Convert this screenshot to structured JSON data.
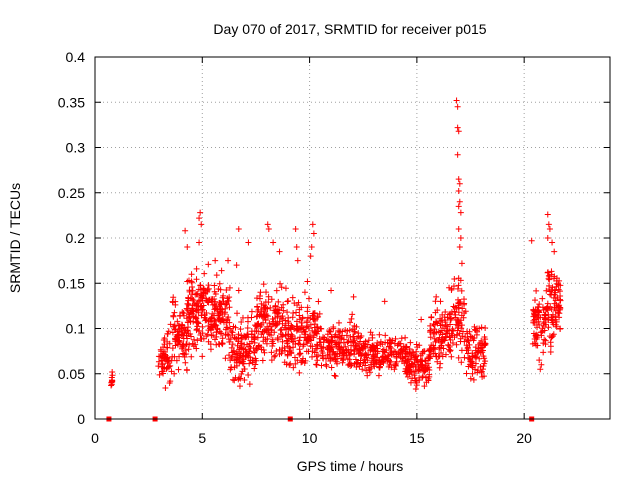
{
  "chart_data": {
    "type": "scatter",
    "title": "Day 070 of 2017, SRMTID for receiver p015",
    "xlabel": "GPS time / hours",
    "ylabel": "SRMTID / TECUs",
    "xlim": [
      0,
      24
    ],
    "ylim": [
      0,
      0.4
    ],
    "x_ticks": [
      0,
      5,
      10,
      15,
      20
    ],
    "x_tick_labels": [
      "0",
      "5",
      "10",
      "15",
      "20"
    ],
    "y_ticks": [
      0,
      0.05,
      0.1,
      0.15,
      0.2,
      0.25,
      0.3,
      0.35,
      0.4
    ],
    "y_tick_labels": [
      "0",
      "0.05",
      "0.1",
      "0.15",
      "0.2",
      "0.25",
      "0.3",
      "0.35",
      "0.4"
    ],
    "grid": true,
    "marker_color": "#ff0000",
    "series": [
      {
        "name": "SRMTID",
        "marker": "plus",
        "clusters": [
          {
            "x_start": 0.75,
            "x_end": 0.85,
            "y_min": 0.035,
            "y_max": 0.05,
            "count": 8
          },
          {
            "x_start": 2.95,
            "x_end": 3.6,
            "y_min": 0.03,
            "y_max": 0.11,
            "count": 60
          },
          {
            "x_start": 3.6,
            "x_end": 4.3,
            "y_min": 0.04,
            "y_max": 0.15,
            "count": 90
          },
          {
            "x_start": 4.3,
            "x_end": 5.3,
            "y_min": 0.06,
            "y_max": 0.18,
            "count": 140
          },
          {
            "x_start": 5.3,
            "x_end": 6.3,
            "y_min": 0.05,
            "y_max": 0.17,
            "count": 120
          },
          {
            "x_start": 6.3,
            "x_end": 7.5,
            "y_min": 0.03,
            "y_max": 0.13,
            "count": 130
          },
          {
            "x_start": 7.5,
            "x_end": 8.8,
            "y_min": 0.05,
            "y_max": 0.16,
            "count": 140
          },
          {
            "x_start": 8.8,
            "x_end": 10.5,
            "y_min": 0.04,
            "y_max": 0.15,
            "count": 170
          },
          {
            "x_start": 10.5,
            "x_end": 12.5,
            "y_min": 0.04,
            "y_max": 0.12,
            "count": 190
          },
          {
            "x_start": 12.5,
            "x_end": 14.5,
            "y_min": 0.04,
            "y_max": 0.1,
            "count": 170
          },
          {
            "x_start": 14.5,
            "x_end": 15.6,
            "y_min": 0.03,
            "y_max": 0.09,
            "count": 120
          },
          {
            "x_start": 15.6,
            "x_end": 16.6,
            "y_min": 0.04,
            "y_max": 0.14,
            "count": 100
          },
          {
            "x_start": 16.6,
            "x_end": 17.3,
            "y_min": 0.05,
            "y_max": 0.17,
            "count": 70
          },
          {
            "x_start": 17.3,
            "x_end": 18.2,
            "y_min": 0.03,
            "y_max": 0.12,
            "count": 90
          },
          {
            "x_start": 20.4,
            "x_end": 21.0,
            "y_min": 0.05,
            "y_max": 0.16,
            "count": 70
          },
          {
            "x_start": 21.0,
            "x_end": 21.7,
            "y_min": 0.07,
            "y_max": 0.19,
            "count": 90
          }
        ],
        "points": [
          [
            0.8,
            0.052
          ],
          [
            0.8,
            0.041
          ],
          [
            0.75,
            0.037
          ],
          [
            4.2,
            0.208
          ],
          [
            4.3,
            0.19
          ],
          [
            4.9,
            0.228
          ],
          [
            4.85,
            0.222
          ],
          [
            4.95,
            0.215
          ],
          [
            4.85,
            0.195
          ],
          [
            5.6,
            0.175
          ],
          [
            5.9,
            0.164
          ],
          [
            6.2,
            0.175
          ],
          [
            6.7,
            0.21
          ],
          [
            6.6,
            0.17
          ],
          [
            6.7,
            0.142
          ],
          [
            7.15,
            0.195
          ],
          [
            8.05,
            0.215
          ],
          [
            8.1,
            0.21
          ],
          [
            8.3,
            0.195
          ],
          [
            8.6,
            0.185
          ],
          [
            9.35,
            0.21
          ],
          [
            9.4,
            0.19
          ],
          [
            9.45,
            0.175
          ],
          [
            10.15,
            0.215
          ],
          [
            10.2,
            0.205
          ],
          [
            10.1,
            0.19
          ],
          [
            10.05,
            0.18
          ],
          [
            9.9,
            0.152
          ],
          [
            11.0,
            0.142
          ],
          [
            12.05,
            0.135
          ],
          [
            13.5,
            0.13
          ],
          [
            15.2,
            0.11
          ],
          [
            15.9,
            0.135
          ],
          [
            16.1,
            0.13
          ],
          [
            16.5,
            0.145
          ],
          [
            16.85,
            0.352
          ],
          [
            16.9,
            0.345
          ],
          [
            16.9,
            0.322
          ],
          [
            16.95,
            0.318
          ],
          [
            16.9,
            0.292
          ],
          [
            16.95,
            0.265
          ],
          [
            17.0,
            0.26
          ],
          [
            16.95,
            0.252
          ],
          [
            17.0,
            0.24
          ],
          [
            16.95,
            0.235
          ],
          [
            17.05,
            0.228
          ],
          [
            16.95,
            0.21
          ],
          [
            17.05,
            0.2
          ],
          [
            17.0,
            0.19
          ],
          [
            17.1,
            0.172
          ],
          [
            20.35,
            0.197
          ],
          [
            21.1,
            0.226
          ],
          [
            21.15,
            0.215
          ],
          [
            21.2,
            0.21
          ],
          [
            21.1,
            0.2
          ],
          [
            21.3,
            0.195
          ],
          [
            21.4,
            0.185
          ],
          [
            20.75,
            0.055
          ],
          [
            20.8,
            0.06
          ],
          [
            20.7,
            0.065
          ]
        ]
      },
      {
        "name": "gap markers",
        "marker": "square",
        "points": [
          [
            0.65,
            0
          ],
          [
            2.8,
            0
          ],
          [
            9.1,
            0
          ],
          [
            20.35,
            0
          ]
        ]
      }
    ]
  }
}
